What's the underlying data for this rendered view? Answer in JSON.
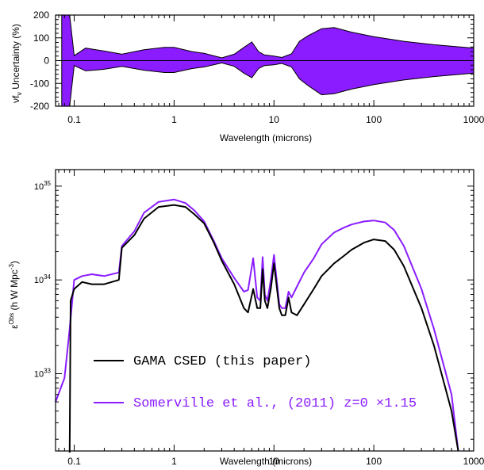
{
  "chart_data": [
    {
      "type": "area",
      "xlabel": "Wavelength (microns)",
      "ylabel": "νf",
      "ylabel_sub": "ν",
      "ylabel_rest": " Uncertainty (%)",
      "xscale": "log",
      "xlim": [
        0.065,
        1000
      ],
      "ylim": [
        -200,
        200
      ],
      "xticks": [
        0.1,
        1,
        10,
        100,
        1000
      ],
      "xtick_labels": [
        "0.1",
        "1",
        "10",
        "100",
        "1000"
      ],
      "yticks": [
        -200,
        -100,
        0,
        100,
        200
      ],
      "ytick_labels": [
        "-200",
        "-100",
        "0",
        "100",
        "200"
      ],
      "fill_color": "#8a1cff",
      "series": [
        {
          "color": "#000000",
          "x": [
            0.075,
            0.09,
            0.1,
            0.13,
            0.2,
            0.3,
            0.5,
            0.8,
            1.0,
            1.5,
            2.0,
            3.0,
            4.0,
            5.0,
            6.0,
            7.0,
            8.0,
            10.0,
            12.0,
            15.0,
            18.0,
            22.0,
            30.0,
            40.0,
            60.0,
            100.0,
            200.0,
            400.0,
            1000.0
          ],
          "upper": [
            220,
            220,
            22,
            55,
            42,
            28,
            48,
            58,
            58,
            40,
            32,
            12,
            28,
            58,
            82,
            40,
            25,
            20,
            14,
            30,
            85,
            110,
            140,
            145,
            125,
            105,
            85,
            70,
            55
          ],
          "lower": [
            -220,
            -220,
            -22,
            -45,
            -38,
            -25,
            -42,
            -52,
            -52,
            -35,
            -28,
            -10,
            -25,
            -55,
            -75,
            -35,
            -22,
            -18,
            -12,
            -28,
            -80,
            -110,
            -150,
            -145,
            -125,
            -105,
            -85,
            -70,
            -55
          ]
        }
      ]
    },
    {
      "type": "line",
      "xlabel": "Wavelength (microns)",
      "ylabel": "ε",
      "ylabel_sup": "Obs",
      "ylabel_rest": " (h W Mpc",
      "ylabel_rest_sup": "-3",
      "ylabel_close": ")",
      "xscale": "log",
      "yscale": "log",
      "xlim": [
        0.065,
        1000
      ],
      "ylim": [
        1.5e+32,
        1.5e+35
      ],
      "xticks": [
        0.1,
        1,
        10,
        100,
        1000
      ],
      "xtick_labels": [
        "0.1",
        "1",
        "10",
        "100",
        "1000"
      ],
      "yticks": [
        1e+33,
        1e+34,
        1e+35
      ],
      "ytick_labels": [
        {
          "base": "10",
          "exp": "33"
        },
        {
          "base": "10",
          "exp": "34"
        },
        {
          "base": "10",
          "exp": "35"
        }
      ],
      "legend_position": "lower-left",
      "series": [
        {
          "name": "GAMA CSED (this paper)",
          "color": "#000000",
          "x": [
            0.09,
            0.092,
            0.1,
            0.12,
            0.15,
            0.2,
            0.28,
            0.3,
            0.4,
            0.5,
            0.7,
            1.0,
            1.3,
            1.6,
            2.0,
            2.5,
            3.0,
            4.0,
            5.0,
            5.5,
            6.2,
            6.8,
            7.3,
            7.7,
            8.1,
            8.6,
            9.3,
            10.0,
            11.3,
            12.0,
            13.0,
            14.0,
            15.0,
            17.0,
            20.0,
            25.0,
            30.0,
            40.0,
            50.0,
            60.0,
            80.0,
            100.0,
            130.0,
            160.0,
            200.0,
            300.0,
            400.0,
            600.0,
            700.0
          ],
          "y": [
            1e+32,
            6e+33,
            8e+33,
            9.5e+33,
            9e+33,
            9e+33,
            1e+34,
            2.2e+34,
            3e+34,
            4.5e+34,
            6e+34,
            6.3e+34,
            6e+34,
            5e+34,
            4e+34,
            2.5e+34,
            1.6e+34,
            9e+33,
            5e+33,
            4.5e+33,
            8e+33,
            5e+33,
            5e+33,
            1.3e+34,
            6e+33,
            5e+33,
            8e+33,
            1.5e+34,
            5e+33,
            4.2e+33,
            4.2e+33,
            6.5e+33,
            4.5e+33,
            4.2e+33,
            5.5e+33,
            8e+33,
            1.1e+34,
            1.5e+34,
            1.8e+34,
            2.1e+34,
            2.5e+34,
            2.7e+34,
            2.6e+34,
            2.1e+34,
            1.4e+34,
            5e+33,
            2e+33,
            4e+32,
            1.5e+32
          ]
        },
        {
          "name": "Somerville et al., (2011) z=0 ×1.15",
          "color": "#8a1cff",
          "x": [
            0.065,
            0.08,
            0.09,
            0.1,
            0.12,
            0.15,
            0.2,
            0.28,
            0.3,
            0.4,
            0.5,
            0.7,
            1.0,
            1.3,
            1.6,
            2.0,
            2.5,
            3.0,
            4.0,
            5.0,
            5.5,
            6.2,
            6.8,
            7.3,
            7.7,
            8.1,
            8.6,
            9.3,
            10.0,
            11.3,
            12.0,
            13.0,
            14.0,
            15.0,
            17.0,
            20.0,
            25.0,
            30.0,
            40.0,
            50.0,
            60.0,
            80.0,
            100.0,
            130.0,
            160.0,
            200.0,
            300.0,
            400.0,
            600.0,
            700.0
          ],
          "y": [
            5e+32,
            9e+32,
            3e+33,
            1e+34,
            1.1e+34,
            1.15e+34,
            1.1e+34,
            1.2e+34,
            2.3e+34,
            3.3e+34,
            5.2e+34,
            6.8e+34,
            7.2e+34,
            6.6e+34,
            5.5e+34,
            4.2e+34,
            2.6e+34,
            1.7e+34,
            1.05e+34,
            7.5e+33,
            7.8e+33,
            1.7e+34,
            6.5e+33,
            6e+33,
            1.75e+34,
            7e+33,
            6e+33,
            1e+34,
            1.85e+34,
            5.5e+33,
            5e+33,
            5e+33,
            7.5e+33,
            6.5e+33,
            8.5e+33,
            1.2e+34,
            1.7e+34,
            2.4e+34,
            3.2e+34,
            3.6e+34,
            3.9e+34,
            4.2e+34,
            4.3e+34,
            4.1e+34,
            3.4e+34,
            2.3e+34,
            8e+33,
            3e+33,
            6e+32,
            1.5e+32
          ]
        }
      ]
    }
  ]
}
